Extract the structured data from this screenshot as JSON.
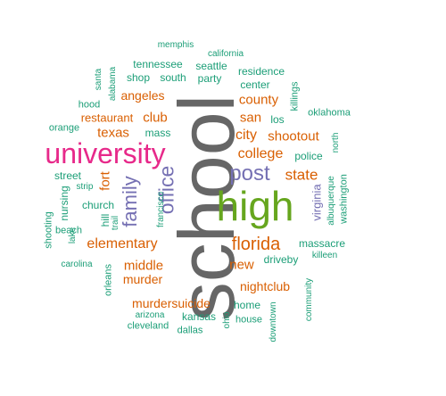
{
  "colors": {
    "gray": "#666666",
    "green": "#66a61e",
    "magenta": "#e7298a",
    "purple": "#7570b3",
    "orange": "#d95f02",
    "teal": "#1b9e77"
  },
  "words": [
    {
      "text": "school",
      "color": "gray",
      "vertical": true
    },
    {
      "text": "high",
      "color": "green",
      "vertical": false
    },
    {
      "text": "university",
      "color": "magenta",
      "vertical": false
    },
    {
      "text": "post",
      "color": "purple",
      "vertical": false
    },
    {
      "text": "office",
      "color": "purple",
      "vertical": true
    },
    {
      "text": "family",
      "color": "purple",
      "vertical": true
    },
    {
      "text": "florida",
      "color": "orange",
      "vertical": false
    },
    {
      "text": "college",
      "color": "orange",
      "vertical": false
    },
    {
      "text": "state",
      "color": "orange",
      "vertical": false
    },
    {
      "text": "elementary",
      "color": "orange",
      "vertical": false
    },
    {
      "text": "city",
      "color": "orange",
      "vertical": false
    },
    {
      "text": "shootout",
      "color": "orange",
      "vertical": false
    },
    {
      "text": "county",
      "color": "orange",
      "vertical": false
    },
    {
      "text": "san",
      "color": "orange",
      "vertical": false
    },
    {
      "text": "club",
      "color": "orange",
      "vertical": false
    },
    {
      "text": "texas",
      "color": "orange",
      "vertical": false
    },
    {
      "text": "fort",
      "color": "orange",
      "vertical": true
    },
    {
      "text": "middle",
      "color": "orange",
      "vertical": false
    },
    {
      "text": "murder",
      "color": "orange",
      "vertical": false
    },
    {
      "text": "new",
      "color": "orange",
      "vertical": false
    },
    {
      "text": "nightclub",
      "color": "orange",
      "vertical": false
    },
    {
      "text": "murdersuicide",
      "color": "orange",
      "vertical": false
    },
    {
      "text": "restaurant",
      "color": "orange",
      "vertical": false
    },
    {
      "text": "angeles",
      "color": "orange",
      "vertical": false
    },
    {
      "text": "virginia",
      "color": "purple",
      "vertical": true
    },
    {
      "text": "police",
      "color": "teal",
      "vertical": false
    },
    {
      "text": "los",
      "color": "teal",
      "vertical": false
    },
    {
      "text": "center",
      "color": "teal",
      "vertical": false
    },
    {
      "text": "residence",
      "color": "teal",
      "vertical": false
    },
    {
      "text": "party",
      "color": "teal",
      "vertical": false
    },
    {
      "text": "seattle",
      "color": "teal",
      "vertical": false
    },
    {
      "text": "tennessee",
      "color": "teal",
      "vertical": false
    },
    {
      "text": "shop",
      "color": "teal",
      "vertical": false
    },
    {
      "text": "south",
      "color": "teal",
      "vertical": false
    },
    {
      "text": "california",
      "color": "teal",
      "vertical": false
    },
    {
      "text": "memphis",
      "color": "teal",
      "vertical": false
    },
    {
      "text": "killings",
      "color": "teal",
      "vertical": true
    },
    {
      "text": "oklahoma",
      "color": "teal",
      "vertical": false
    },
    {
      "text": "north",
      "color": "teal",
      "vertical": true
    },
    {
      "text": "mass",
      "color": "teal",
      "vertical": false
    },
    {
      "text": "hood",
      "color": "teal",
      "vertical": false
    },
    {
      "text": "orange",
      "color": "teal",
      "vertical": false
    },
    {
      "text": "santa",
      "color": "teal",
      "vertical": true
    },
    {
      "text": "alabama",
      "color": "teal",
      "vertical": true
    },
    {
      "text": "street",
      "color": "teal",
      "vertical": false
    },
    {
      "text": "strip",
      "color": "teal",
      "vertical": false
    },
    {
      "text": "nursing",
      "color": "teal",
      "vertical": true
    },
    {
      "text": "church",
      "color": "teal",
      "vertical": false
    },
    {
      "text": "francisco",
      "color": "teal",
      "vertical": true
    },
    {
      "text": "hill",
      "color": "teal",
      "vertical": true
    },
    {
      "text": "trail",
      "color": "teal",
      "vertical": true
    },
    {
      "text": "lake",
      "color": "teal",
      "vertical": true
    },
    {
      "text": "shooting",
      "color": "teal",
      "vertical": true
    },
    {
      "text": "beach",
      "color": "teal",
      "vertical": false
    },
    {
      "text": "carolina",
      "color": "teal",
      "vertical": false
    },
    {
      "text": "orleans",
      "color": "teal",
      "vertical": true
    },
    {
      "text": "albuquerque",
      "color": "teal",
      "vertical": true
    },
    {
      "text": "washington",
      "color": "teal",
      "vertical": true
    },
    {
      "text": "massacre",
      "color": "teal",
      "vertical": false
    },
    {
      "text": "killeen",
      "color": "teal",
      "vertical": false
    },
    {
      "text": "driveby",
      "color": "teal",
      "vertical": false
    },
    {
      "text": "home",
      "color": "teal",
      "vertical": false
    },
    {
      "text": "house",
      "color": "teal",
      "vertical": false
    },
    {
      "text": "ohio",
      "color": "teal",
      "vertical": true
    },
    {
      "text": "downtown",
      "color": "teal",
      "vertical": true
    },
    {
      "text": "community",
      "color": "teal",
      "vertical": true
    },
    {
      "text": "arizona",
      "color": "teal",
      "vertical": false
    },
    {
      "text": "kansas",
      "color": "teal",
      "vertical": false
    },
    {
      "text": "cleveland",
      "color": "teal",
      "vertical": false
    },
    {
      "text": "dallas",
      "color": "teal",
      "vertical": false
    }
  ]
}
